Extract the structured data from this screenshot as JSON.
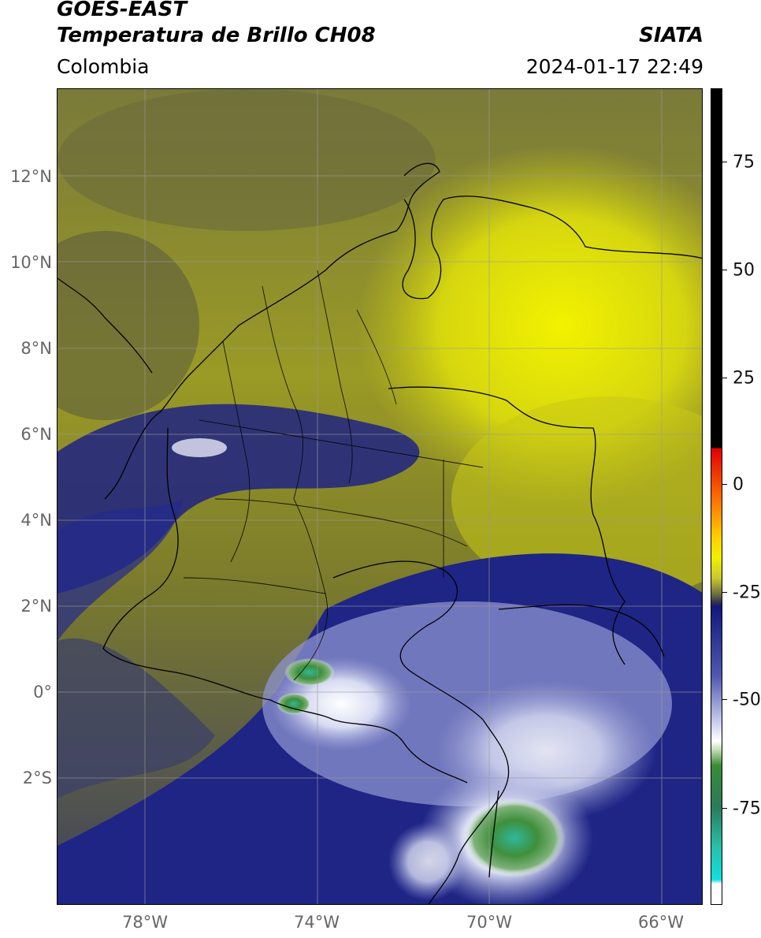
{
  "header": {
    "satellite": "GOES-EAST",
    "product": "Temperatura de Brillo CH08",
    "organization": "SIATA",
    "region": "Colombia",
    "timestamp": "2024-01-17 22:49"
  },
  "map": {
    "lat_labels": [
      "12°N",
      "10°N",
      "8°N",
      "6°N",
      "4°N",
      "2°N",
      "0°",
      "2°S"
    ],
    "lon_labels": [
      "78°W",
      "74°W",
      "70°W",
      "66°W"
    ],
    "lat_range": [
      -5,
      14
    ],
    "lon_range": [
      -80,
      -65
    ],
    "colors": {
      "dark_olive": "#4d4d3a",
      "olive": "#8a8a2e",
      "yellow": "#e8e800",
      "navy": "#1a1f7a",
      "lavender": "#b8bde6",
      "white": "#ffffff",
      "green": "#3d8a3a",
      "teal": "#2ab8a0"
    }
  },
  "colorbar": {
    "labels": [
      "75",
      "50",
      "25",
      "0",
      "-25",
      "-50",
      "-75"
    ]
  }
}
